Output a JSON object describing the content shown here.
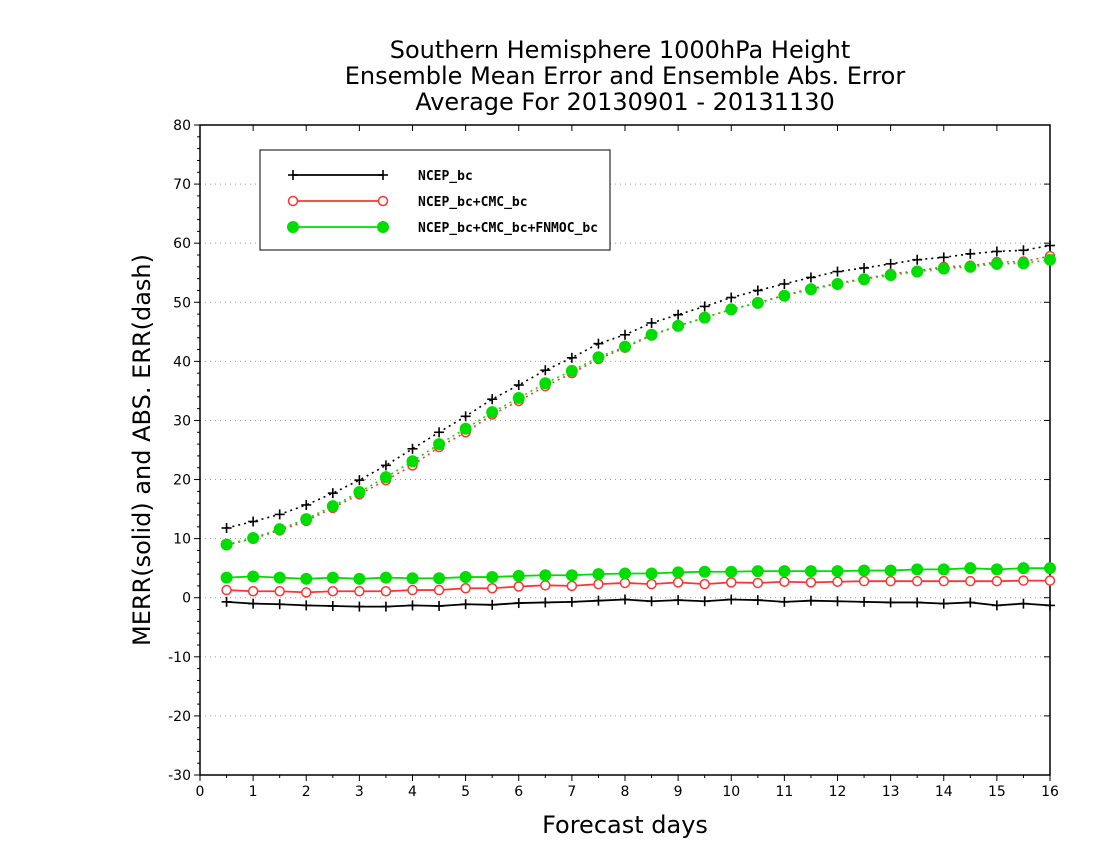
{
  "chart_data": {
    "type": "line",
    "title_lines": [
      "Southern Hemisphere 1000hPa Height",
      "Ensemble Mean Error and Ensemble Abs. Error",
      "Average For 20130901 - 20131130"
    ],
    "xlabel": "Forecast days",
    "ylabel": "MERR(solid) and ABS. ERR(dash)",
    "xlim": [
      0,
      16
    ],
    "ylim": [
      -30,
      80
    ],
    "xticks": [
      0,
      1,
      2,
      3,
      4,
      5,
      6,
      7,
      8,
      9,
      10,
      11,
      12,
      13,
      14,
      15,
      16
    ],
    "yticks": [
      -30,
      -20,
      -10,
      0,
      10,
      20,
      30,
      40,
      50,
      60,
      70,
      80
    ],
    "grid": "horizontal dotted",
    "legend_position": "top-left",
    "x": [
      0.5,
      1,
      1.5,
      2,
      2.5,
      3,
      3.5,
      4,
      4.5,
      5,
      5.5,
      6,
      6.5,
      7,
      7.5,
      8,
      8.5,
      9,
      9.5,
      10,
      10.5,
      11,
      11.5,
      12,
      12.5,
      13,
      13.5,
      14,
      14.5,
      15,
      15.5,
      16
    ],
    "series": [
      {
        "name": "NCEP_bc",
        "color": "#000000",
        "marker": "plus",
        "merr": [
          -0.7,
          -1.0,
          -1.1,
          -1.3,
          -1.4,
          -1.5,
          -1.5,
          -1.3,
          -1.4,
          -1.1,
          -1.2,
          -0.9,
          -0.8,
          -0.7,
          -0.5,
          -0.3,
          -0.6,
          -0.4,
          -0.6,
          -0.3,
          -0.4,
          -0.7,
          -0.5,
          -0.6,
          -0.7,
          -0.8,
          -0.8,
          -1.0,
          -0.8,
          -1.3,
          -1.0,
          -1.3
        ],
        "abs_err": [
          11.8,
          12.9,
          14.1,
          15.7,
          17.7,
          19.9,
          22.4,
          25.2,
          28.0,
          30.7,
          33.6,
          36.0,
          38.5,
          40.6,
          43.0,
          44.5,
          46.5,
          47.9,
          49.3,
          50.8,
          52.0,
          53.1,
          54.2,
          55.2,
          55.8,
          56.5,
          57.2,
          57.6,
          58.2,
          58.6,
          58.8,
          59.6
        ]
      },
      {
        "name": "NCEP_bc+CMC_bc",
        "color": "#ff3333",
        "marker": "open-circle",
        "merr": [
          1.3,
          1.1,
          1.1,
          0.9,
          1.1,
          1.1,
          1.1,
          1.3,
          1.3,
          1.6,
          1.6,
          1.9,
          2.1,
          2.0,
          2.3,
          2.5,
          2.3,
          2.6,
          2.3,
          2.6,
          2.5,
          2.7,
          2.6,
          2.7,
          2.8,
          2.8,
          2.8,
          2.8,
          2.8,
          2.8,
          2.9,
          2.9
        ],
        "abs_err": [
          8.9,
          10.0,
          11.4,
          13.0,
          15.2,
          17.5,
          19.9,
          22.4,
          25.5,
          28.0,
          31.0,
          33.3,
          35.8,
          38.0,
          40.4,
          42.3,
          44.4,
          46.0,
          47.4,
          48.8,
          49.9,
          51.2,
          52.3,
          53.2,
          54.0,
          54.8,
          55.3,
          56.0,
          56.2,
          56.8,
          56.9,
          57.8
        ]
      },
      {
        "name": "NCEP_bc+CMC_bc+FNMOC_bc",
        "color": "#00dd00",
        "marker": "filled-circle",
        "merr": [
          3.4,
          3.6,
          3.4,
          3.2,
          3.4,
          3.2,
          3.4,
          3.3,
          3.3,
          3.5,
          3.5,
          3.7,
          3.8,
          3.8,
          4.0,
          4.1,
          4.1,
          4.3,
          4.4,
          4.4,
          4.5,
          4.5,
          4.5,
          4.5,
          4.6,
          4.6,
          4.8,
          4.8,
          5.0,
          4.8,
          5.0,
          5.0
        ],
        "abs_err": [
          9.0,
          10.1,
          11.6,
          13.3,
          15.5,
          17.9,
          20.4,
          23.1,
          26.0,
          28.6,
          31.4,
          33.8,
          36.3,
          38.4,
          40.7,
          42.5,
          44.5,
          46.0,
          47.4,
          48.8,
          49.9,
          51.1,
          52.2,
          53.1,
          53.9,
          54.6,
          55.2,
          55.7,
          56.0,
          56.5,
          56.6,
          57.2
        ]
      }
    ]
  }
}
